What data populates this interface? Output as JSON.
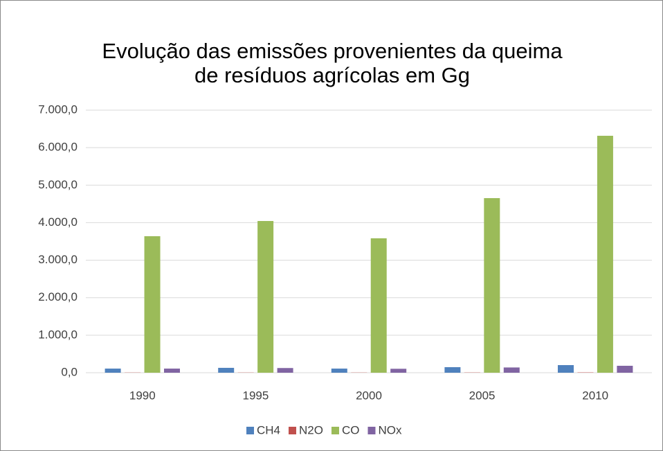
{
  "chart_data": {
    "type": "bar",
    "title": [
      "Evolução das emissões provenientes da queima",
      "de resíduos agrícolas em Gg"
    ],
    "categories": [
      "1990",
      "1995",
      "2000",
      "2005",
      "2010"
    ],
    "series": [
      {
        "name": "CH4",
        "color": "#4f81bd",
        "values": [
          110,
          130,
          110,
          148,
          203
        ]
      },
      {
        "name": "N2O",
        "color": "#c0504d",
        "values": [
          5,
          5,
          5,
          6,
          8
        ]
      },
      {
        "name": "CO",
        "color": "#9bbb59",
        "values": [
          3640,
          4045,
          3583,
          4655,
          6317
        ]
      },
      {
        "name": "NOx",
        "color": "#8064a2",
        "values": [
          110,
          125,
          105,
          140,
          185
        ]
      }
    ],
    "ylim": [
      0,
      7000
    ],
    "yticks": [
      {
        "value": 0,
        "label": "0,0"
      },
      {
        "value": 1000,
        "label": "1.000,0"
      },
      {
        "value": 2000,
        "label": "2.000,0"
      },
      {
        "value": 3000,
        "label": "3.000,0"
      },
      {
        "value": 4000,
        "label": "4.000,0"
      },
      {
        "value": 5000,
        "label": "5.000,0"
      },
      {
        "value": 6000,
        "label": "6.000,0"
      },
      {
        "value": 7000,
        "label": "7.000,0"
      }
    ],
    "grid": true,
    "legend": "bottom"
  }
}
